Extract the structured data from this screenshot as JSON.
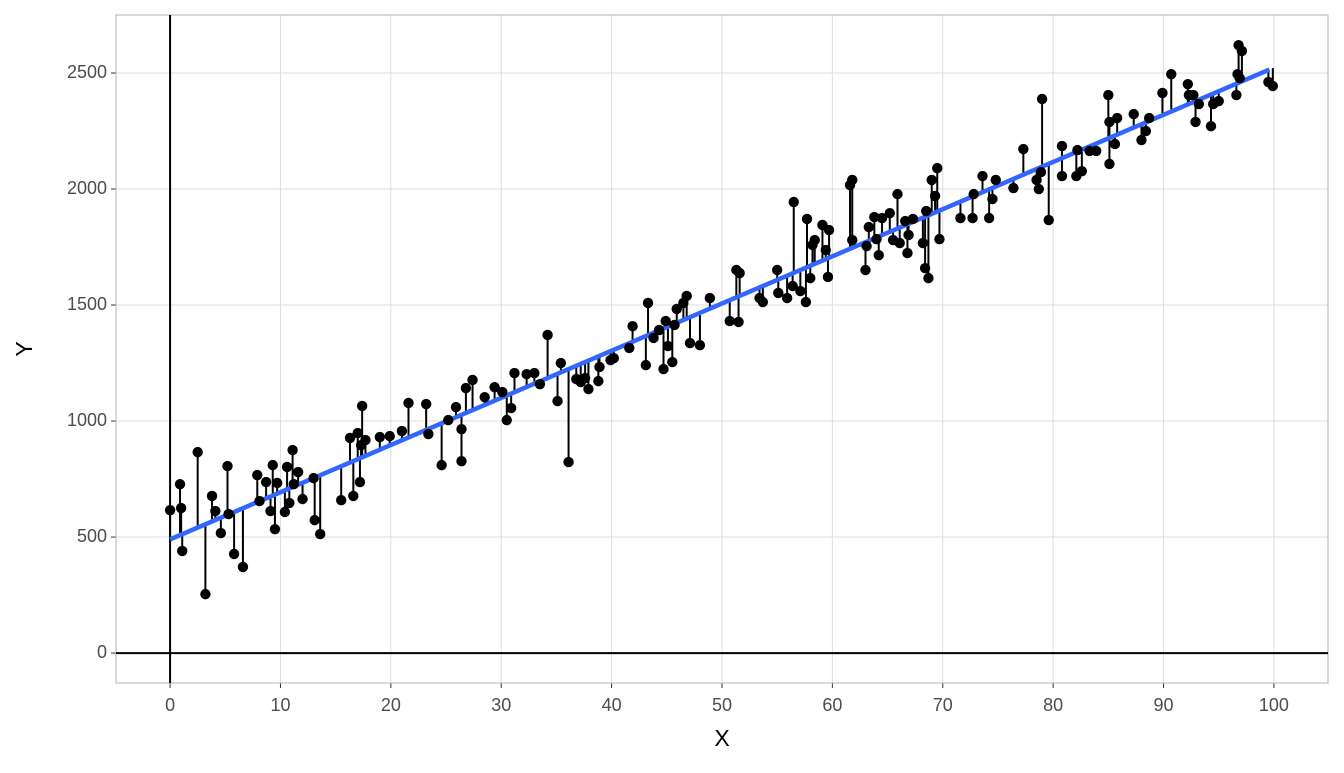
{
  "chart_data": {
    "type": "scatter",
    "x_label": "X",
    "y_label": "Y",
    "x": [
      0,
      0.9,
      1.0,
      1.1,
      2.5,
      3.2,
      3.8,
      4.1,
      4.6,
      5.2,
      5.3,
      5.8,
      6.6,
      7.9,
      8.1,
      8.7,
      9.1,
      9.3,
      9.5,
      9.7,
      10.4,
      10.6,
      10.8,
      11.1,
      11.2,
      11.6,
      12.0,
      13.0,
      13.1,
      13.6,
      15.5,
      16.3,
      16.6,
      17.0,
      17.2,
      17.4,
      17.3,
      17.7,
      19.0,
      19.9,
      21.0,
      21.6,
      23.2,
      23.4,
      24.6,
      25.2,
      25.9,
      26.4,
      26.4,
      26.8,
      27.4,
      28.5,
      29.4,
      30.1,
      30.5,
      30.9,
      31.2,
      32.3,
      33.0,
      33.5,
      34.2,
      35.1,
      35.4,
      36.1,
      36.8,
      37.2,
      37.6,
      37.9,
      38.8,
      38.9,
      39.9,
      40.2,
      41.6,
      41.9,
      43.1,
      43.3,
      43.8,
      44.3,
      44.7,
      44.9,
      45.1,
      45.5,
      45.7,
      45.9,
      46.5,
      46.8,
      47.1,
      48.0,
      48.9,
      50.7,
      51.3,
      51.5,
      51.6,
      53.4,
      53.7,
      55.0,
      55.1,
      55.9,
      56.4,
      56.5,
      57.1,
      57.6,
      57.7,
      58.2,
      58.0,
      58.4,
      59.1,
      59.4,
      59.6,
      59.7,
      61.6,
      61.8,
      61.8,
      63.0,
      63.1,
      63.3,
      63.8,
      64.0,
      64.2,
      64.5,
      65.2,
      65.5,
      65.9,
      66.1,
      66.6,
      66.8,
      66.9,
      67.3,
      68.2,
      68.4,
      68.5,
      68.7,
      69.0,
      69.3,
      69.5,
      69.7,
      71.6,
      72.7,
      72.8,
      73.6,
      74.2,
      74.5,
      74.8,
      76.4,
      77.3,
      78.5,
      78.7,
      78.9,
      79.0,
      79.6,
      80.8,
      80.8,
      82.1,
      82.2,
      82.6,
      83.3,
      83.9,
      85.0,
      85.1,
      85.1,
      85.6,
      85.8,
      87.3,
      88.0,
      88.4,
      88.7,
      89.9,
      90.7,
      92.2,
      92.3,
      92.7,
      92.9,
      93.2,
      94.3,
      94.5,
      95.0,
      96.6,
      96.8,
      96.7,
      97.1,
      96.9,
      99.5,
      99.9
    ],
    "y": [
      616,
      728,
      625,
      440,
      866,
      254,
      677,
      612,
      517,
      806,
      599,
      427,
      371,
      767,
      655,
      737,
      612,
      810,
      534,
      733,
      608,
      802,
      647,
      875,
      728,
      780,
      664,
      754,
      573,
      513,
      659,
      927,
      677,
      948,
      737,
      1065,
      896,
      918,
      931,
      935,
      957,
      1078,
      1073,
      944,
      810,
      1004,
      1060,
      827,
      965,
      1142,
      1177,
      1103,
      1146,
      1125,
      1004,
      1056,
      1207,
      1202,
      1207,
      1159,
      1371,
      1086,
      1250,
      823,
      1181,
      1168,
      1185,
      1138,
      1172,
      1233,
      1263,
      1271,
      1315,
      1409,
      1241,
      1509,
      1358,
      1392,
      1224,
      1431,
      1323,
      1254,
      1414,
      1483,
      1509,
      1539,
      1336,
      1327,
      1530,
      1431,
      1651,
      1427,
      1638,
      1530,
      1513,
      1651,
      1552,
      1530,
      1582,
      1944,
      1560,
      1513,
      1871,
      1759,
      1616,
      1780,
      1845,
      1737,
      1621,
      1823,
      2017,
      2039,
      1780,
      1651,
      1754,
      1836,
      1879,
      1784,
      1715,
      1875,
      1896,
      1780,
      1978,
      1767,
      1862,
      1724,
      1802,
      1871,
      1767,
      1659,
      1905,
      1616,
      2039,
      1970,
      2090,
      1784,
      1875,
      1875,
      1978,
      2056,
      1875,
      1957,
      2039,
      2004,
      2172,
      2039,
      2000,
      2073,
      2388,
      1866,
      2185,
      2056,
      2056,
      2168,
      2077,
      2164,
      2164,
      2405,
      2108,
      2289,
      2194,
      2306,
      2323,
      2211,
      2250,
      2306,
      2414,
      2495,
      2452,
      2405,
      2405,
      2289,
      2366,
      2271,
      2366,
      2379,
      2405,
      2620,
      2495,
      2595,
      2478,
      2461,
      2444
    ],
    "color": "#000000",
    "fit": {
      "x": [
        0,
        99.6
      ],
      "y": [
        490,
        2515
      ],
      "color": "#3366ff"
    },
    "xlim": [
      -4.9,
      104.9
    ],
    "ylim": [
      -129,
      2750
    ],
    "xticks": [
      0,
      10,
      20,
      30,
      40,
      50,
      60,
      70,
      80,
      90,
      100
    ],
    "yticks": [
      0,
      500,
      1000,
      1500,
      2000,
      2500
    ],
    "grid": true,
    "hline": 0,
    "vline": 0
  }
}
